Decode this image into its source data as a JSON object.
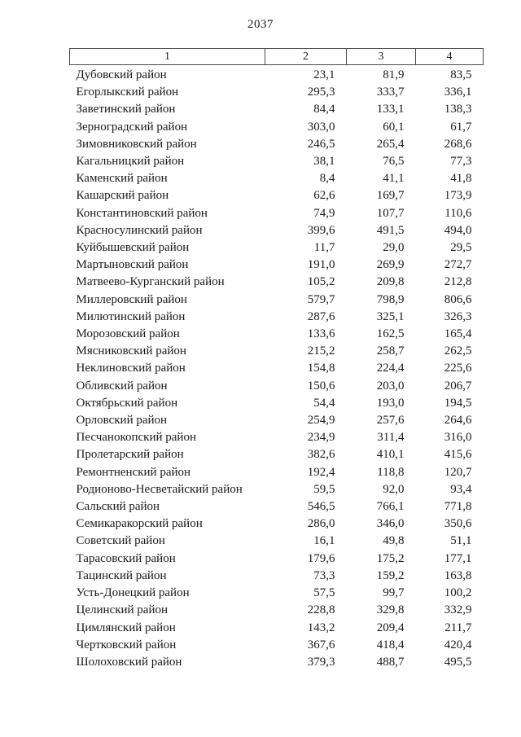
{
  "page": {
    "number": "2037"
  },
  "table": {
    "headers": [
      "1",
      "2",
      "3",
      "4"
    ],
    "rows": [
      {
        "name": "Дубовский район",
        "v1": "23,1",
        "v2": "81,9",
        "v3": "83,5"
      },
      {
        "name": "Егорлыкский район",
        "v1": "295,3",
        "v2": "333,7",
        "v3": "336,1"
      },
      {
        "name": "Заветинский район",
        "v1": "84,4",
        "v2": "133,1",
        "v3": "138,3"
      },
      {
        "name": "Зерноградский район",
        "v1": "303,0",
        "v2": "60,1",
        "v3": "61,7"
      },
      {
        "name": "Зимовниковский район",
        "v1": "246,5",
        "v2": "265,4",
        "v3": "268,6"
      },
      {
        "name": "Кагальницкий район",
        "v1": "38,1",
        "v2": "76,5",
        "v3": "77,3"
      },
      {
        "name": "Каменский район",
        "v1": "8,4",
        "v2": "41,1",
        "v3": "41,8"
      },
      {
        "name": "Кашарский район",
        "v1": "62,6",
        "v2": "169,7",
        "v3": "173,9"
      },
      {
        "name": "Константиновский район",
        "v1": "74,9",
        "v2": "107,7",
        "v3": "110,6"
      },
      {
        "name": "Красносулинский район",
        "v1": "399,6",
        "v2": "491,5",
        "v3": "494,0"
      },
      {
        "name": "Куйбышевский район",
        "v1": "11,7",
        "v2": "29,0",
        "v3": "29,5"
      },
      {
        "name": "Мартыновский район",
        "v1": "191,0",
        "v2": "269,9",
        "v3": "272,7"
      },
      {
        "name": "Матвеево-Курганский район",
        "v1": "105,2",
        "v2": "209,8",
        "v3": "212,8"
      },
      {
        "name": "Миллеровский район",
        "v1": "579,7",
        "v2": "798,9",
        "v3": "806,6"
      },
      {
        "name": "Милютинский район",
        "v1": "287,6",
        "v2": "325,1",
        "v3": "326,3"
      },
      {
        "name": "Морозовский район",
        "v1": "133,6",
        "v2": "162,5",
        "v3": "165,4"
      },
      {
        "name": "Мясниковский район",
        "v1": "215,2",
        "v2": "258,7",
        "v3": "262,5"
      },
      {
        "name": "Неклиновский район",
        "v1": "154,8",
        "v2": "224,4",
        "v3": "225,6"
      },
      {
        "name": "Обливский район",
        "v1": "150,6",
        "v2": "203,0",
        "v3": "206,7"
      },
      {
        "name": "Октябрьский район",
        "v1": "54,4",
        "v2": "193,0",
        "v3": "194,5"
      },
      {
        "name": "Орловский район",
        "v1": "254,9",
        "v2": "257,6",
        "v3": "264,6"
      },
      {
        "name": "Песчанокопский район",
        "v1": "234,9",
        "v2": "311,4",
        "v3": "316,0"
      },
      {
        "name": "Пролетарский район",
        "v1": "382,6",
        "v2": "410,1",
        "v3": "415,6"
      },
      {
        "name": "Ремонтненский район",
        "v1": "192,4",
        "v2": "118,8",
        "v3": "120,7"
      },
      {
        "name": "Родионово-Несветайский район",
        "v1": "59,5",
        "v2": "92,0",
        "v3": "93,4"
      },
      {
        "name": "Сальский район",
        "v1": "546,5",
        "v2": "766,1",
        "v3": "771,8"
      },
      {
        "name": "Семикаракорский район",
        "v1": "286,0",
        "v2": "346,0",
        "v3": "350,6"
      },
      {
        "name": "Советский район",
        "v1": "16,1",
        "v2": "49,8",
        "v3": "51,1"
      },
      {
        "name": "Тарасовский район",
        "v1": "179,6",
        "v2": "175,2",
        "v3": "177,1"
      },
      {
        "name": "Тацинский район",
        "v1": "73,3",
        "v2": "159,2",
        "v3": "163,8"
      },
      {
        "name": "Усть-Донецкий район",
        "v1": "57,5",
        "v2": "99,7",
        "v3": "100,2"
      },
      {
        "name": "Целинский район",
        "v1": "228,8",
        "v2": "329,8",
        "v3": "332,9"
      },
      {
        "name": "Цимлянский район",
        "v1": "143,2",
        "v2": "209,4",
        "v3": "211,7"
      },
      {
        "name": "Чертковский район",
        "v1": "367,6",
        "v2": "418,4",
        "v3": "420,4"
      },
      {
        "name": "Шолоховский район",
        "v1": "379,3",
        "v2": "488,7",
        "v3": "495,5"
      }
    ]
  }
}
